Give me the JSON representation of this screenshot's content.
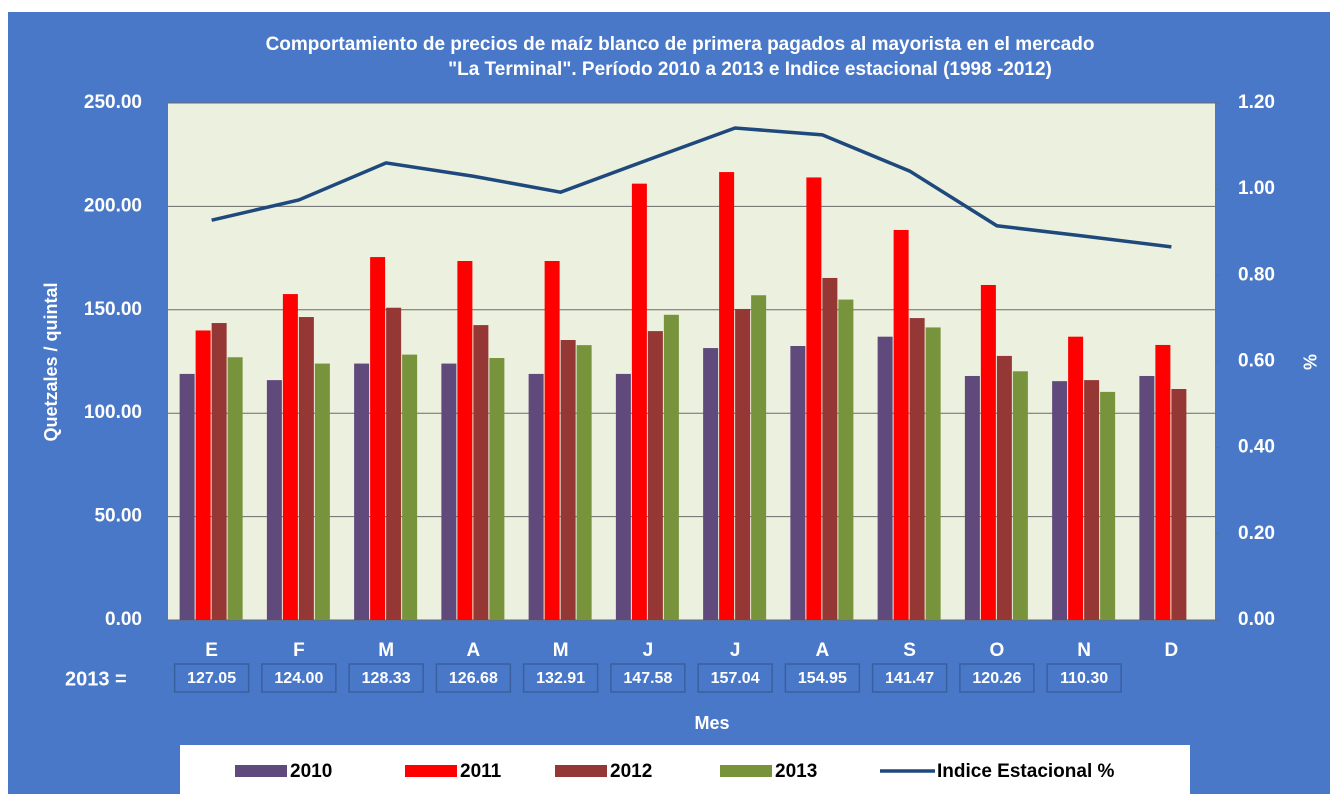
{
  "chart_data": {
    "type": "bar",
    "title": [
      "Comportamiento de precios de maíz blanco de primera  pagados al mayorista  en el mercado",
      "\"La Terminal\". Período 2010 a 2013  e  Indice estacional (1998 -2012)"
    ],
    "y_label": "Quetzales / quintal",
    "y2_label": "%",
    "x_label": "Mes",
    "value_labels_prefix": "2013 =",
    "categories": [
      "E",
      "F",
      "M",
      "A",
      "M",
      "J",
      "J",
      "A",
      "S",
      "O",
      "N",
      "D"
    ],
    "series": [
      {
        "name": "2010",
        "color": "#604a7b",
        "type": "bar",
        "values": [
          119,
          116,
          124,
          124,
          119,
          119,
          131.5,
          132.5,
          137,
          118,
          115.5,
          118
        ]
      },
      {
        "name": "2011",
        "color": "#ff0000",
        "type": "bar",
        "values": [
          140,
          157.6,
          175.5,
          173.6,
          173.6,
          211,
          216.6,
          214,
          188.6,
          162,
          137,
          133
        ]
      },
      {
        "name": "2012",
        "color": "#953735",
        "type": "bar",
        "values": [
          143.6,
          146.5,
          151,
          142.6,
          135.4,
          139.7,
          150.4,
          165.4,
          146,
          127.7,
          116,
          111.7
        ]
      },
      {
        "name": "2013",
        "color": "#77933c",
        "type": "bar",
        "values": [
          127.05,
          124,
          128.33,
          126.68,
          132.91,
          147.58,
          157.04,
          154.95,
          141.47,
          120.26,
          110.3,
          null
        ],
        "value_labels": [
          "127.05",
          "124.00",
          "128.33",
          "126.68",
          "132.91",
          "147.58",
          "157.04",
          "154.95",
          "141.47",
          "120.26",
          "110.30",
          null
        ]
      },
      {
        "name": "Indice Estacional %",
        "color": "#1f497d",
        "type": "line",
        "axis": "y2",
        "values": [
          0.928,
          0.975,
          1.061,
          1.03,
          0.993,
          1.068,
          1.142,
          1.126,
          1.042,
          0.915,
          0.891,
          0.866
        ]
      }
    ],
    "ylim": [
      0,
      250
    ],
    "yticks": [
      {
        "value": 0,
        "label": "0.00"
      },
      {
        "value": 50,
        "label": "50.00"
      },
      {
        "value": 100,
        "label": "100.00"
      },
      {
        "value": 150,
        "label": "150.00"
      },
      {
        "value": 200,
        "label": "200.00"
      },
      {
        "value": 250,
        "label": "250.00"
      }
    ],
    "y2lim": [
      0,
      1.2
    ],
    "y2ticks": [
      {
        "value": 0,
        "label": "0.00"
      },
      {
        "value": 0.2,
        "label": "0.20"
      },
      {
        "value": 0.4,
        "label": "0.40"
      },
      {
        "value": 0.6,
        "label": "0.60"
      },
      {
        "value": 0.8,
        "label": "0.80"
      },
      {
        "value": 1,
        "label": "1.00"
      },
      {
        "value": 1.2,
        "label": "1.20"
      }
    ],
    "grid": true,
    "legend": "bottom"
  }
}
